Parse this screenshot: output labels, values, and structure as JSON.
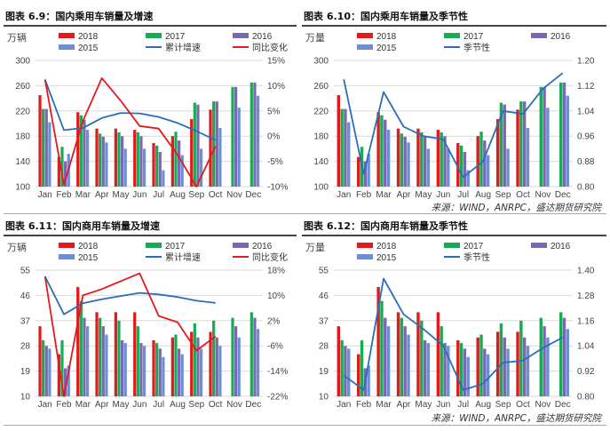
{
  "source_top": "来源：WIND，ANRPC，盛达期货研究院",
  "source_bottom": "来源：WIND，ANRPC，盛达期货研究院",
  "colors": {
    "y2018": "#e31a1c",
    "y2017": "#1aaa55",
    "y2016": "#7b68b0",
    "y2015": "#6b8fd6",
    "line_blue": "#2a6ebb",
    "line_red": "#e31a1c",
    "grid": "#d9d9d9"
  },
  "charts": [
    {
      "title": "图表 6.9：国内乘用车销量及增速",
      "unit": "万辆",
      "type": "bar",
      "categories": [
        "Jan",
        "Feb",
        "Mar",
        "Apr",
        "May",
        "Jun",
        "Jul",
        "Aug",
        "Sep",
        "Oct",
        "Nov",
        "Dec"
      ],
      "series": [
        {
          "name": "2018",
          "values": [
            245,
            147,
            218,
            192,
            192,
            190,
            169,
            180,
            207,
            222,
            null,
            null
          ]
        },
        {
          "name": "2017",
          "values": [
            223,
            163,
            213,
            184,
            186,
            186,
            165,
            187,
            233,
            235,
            258,
            265
          ]
        },
        {
          "name": "2016",
          "values": [
            223,
            140,
            206,
            179,
            180,
            180,
            155,
            173,
            230,
            235,
            258,
            265
          ]
        },
        {
          "name": "2015",
          "values": [
            202,
            152,
            190,
            170,
            160,
            160,
            126,
            150,
            160,
            193,
            225,
            244
          ]
        }
      ],
      "lines": [
        {
          "name": "累计增速",
          "axis": "right",
          "values": [
            11.2,
            1.2,
            1.6,
            3.6,
            4.6,
            4.5,
            3.8,
            2.6,
            1.0,
            -0.8,
            null,
            null
          ]
        },
        {
          "name": "同比变化",
          "axis": "right",
          "values": [
            11.2,
            -9.6,
            3.0,
            11.5,
            7.0,
            2.0,
            1.5,
            -3.7,
            -10.0,
            -2.0,
            null,
            null
          ]
        }
      ],
      "ylim": [
        100,
        300
      ],
      "yticks": [
        100,
        140,
        180,
        220,
        260,
        300
      ],
      "y2lim": [
        -10,
        15
      ],
      "y2ticks": [
        -10,
        -5,
        0,
        5,
        10,
        15
      ],
      "y2suffix": "%",
      "legend": [
        [
          "2018",
          "bar",
          "y2018"
        ],
        [
          "2017",
          "bar",
          "y2017"
        ],
        [
          "2016",
          "bar",
          "y2016"
        ],
        [
          "2015",
          "bar",
          "y2015"
        ],
        [
          "累计增速",
          "line",
          "line_blue"
        ],
        [
          "同比变化",
          "line",
          "line_red"
        ]
      ]
    },
    {
      "title": "图表 6.10：国内乘用车销量及季节性",
      "unit": "万量",
      "type": "bar",
      "categories": [
        "Jan",
        "Feb",
        "Mar",
        "Apr",
        "May",
        "Jun",
        "Jul",
        "Aug",
        "Sep",
        "Oct",
        "Nov",
        "Dec"
      ],
      "series": [
        {
          "name": "2018",
          "values": [
            245,
            147,
            218,
            192,
            192,
            190,
            169,
            180,
            207,
            222,
            null,
            null
          ]
        },
        {
          "name": "2017",
          "values": [
            223,
            163,
            213,
            184,
            186,
            186,
            165,
            187,
            233,
            235,
            258,
            265
          ]
        },
        {
          "name": "2016",
          "values": [
            223,
            140,
            206,
            179,
            180,
            180,
            155,
            173,
            230,
            235,
            258,
            265
          ]
        },
        {
          "name": "2015",
          "values": [
            202,
            152,
            190,
            170,
            160,
            160,
            126,
            150,
            160,
            193,
            225,
            244
          ]
        }
      ],
      "lines": [
        {
          "name": "季节性",
          "axis": "right",
          "values": [
            1.14,
            0.84,
            1.1,
            0.99,
            0.96,
            0.95,
            0.83,
            0.88,
            1.04,
            1.03,
            1.11,
            1.16
          ]
        }
      ],
      "ylim": [
        100,
        300
      ],
      "yticks": [
        100,
        140,
        180,
        220,
        260,
        300
      ],
      "y2lim": [
        0.8,
        1.2
      ],
      "y2ticks": [
        0.8,
        0.88,
        0.96,
        1.04,
        1.12,
        1.2
      ],
      "y2suffix": "",
      "legend": [
        [
          "2018",
          "bar",
          "y2018"
        ],
        [
          "2017",
          "bar",
          "y2017"
        ],
        [
          "2016",
          "bar",
          "y2016"
        ],
        [
          "2015",
          "bar",
          "y2015"
        ],
        [
          "季节性",
          "line",
          "line_blue"
        ]
      ]
    },
    {
      "title": "图表 6.11：国内商用车销量及增速",
      "unit": "万辆",
      "type": "bar",
      "categories": [
        "Jan",
        "Feb",
        "Mar",
        "Apr",
        "May",
        "Jun",
        "Jul",
        "Aug",
        "Sep",
        "Oct",
        "Nov",
        "Dec"
      ],
      "series": [
        {
          "name": "2018",
          "values": [
            35,
            25,
            49,
            40,
            40,
            40,
            30,
            31,
            33,
            33,
            null,
            null
          ]
        },
        {
          "name": "2017",
          "values": [
            30,
            30,
            44,
            38,
            37,
            35,
            29,
            32,
            36,
            37,
            38,
            40
          ]
        },
        {
          "name": "2016",
          "values": [
            28,
            20,
            38,
            35,
            30,
            29,
            27,
            27,
            31,
            31,
            35,
            38
          ]
        },
        {
          "name": "2015",
          "values": [
            27,
            21,
            35,
            32,
            29,
            28,
            24,
            25,
            27,
            28,
            31,
            34
          ]
        }
      ],
      "lines": [
        {
          "name": "累计增速",
          "axis": "right",
          "values": [
            16.0,
            4.0,
            7.5,
            8.8,
            9.8,
            10.8,
            10.3,
            9.5,
            8.3,
            7.6,
            null,
            null
          ]
        },
        {
          "name": "同比变化",
          "axis": "right",
          "values": [
            16.0,
            -22.0,
            10.0,
            12.0,
            14.5,
            17.0,
            3.5,
            1.5,
            -7.5,
            -3.0,
            null,
            null
          ]
        }
      ],
      "ylim": [
        10,
        55
      ],
      "yticks": [
        10,
        19,
        28,
        37,
        46,
        55
      ],
      "y2lim": [
        -22,
        18
      ],
      "y2ticks": [
        -22,
        -14,
        -6,
        2,
        10,
        18
      ],
      "y2suffix": "%",
      "legend": [
        [
          "2018",
          "bar",
          "y2018"
        ],
        [
          "2017",
          "bar",
          "y2017"
        ],
        [
          "2016",
          "bar",
          "y2016"
        ],
        [
          "2015",
          "bar",
          "y2015"
        ],
        [
          "累计增速",
          "line",
          "line_blue"
        ],
        [
          "同比变化",
          "line",
          "line_red"
        ]
      ]
    },
    {
      "title": "图表 6.12：国内商用车销量及季节性",
      "unit": "万量",
      "type": "bar",
      "categories": [
        "Jan",
        "Feb",
        "Mar",
        "Apr",
        "May",
        "Jun",
        "Jul",
        "Aug",
        "Sep",
        "Oct",
        "Nov",
        "Dec"
      ],
      "series": [
        {
          "name": "2018",
          "values": [
            35,
            25,
            49,
            40,
            40,
            40,
            30,
            31,
            33,
            33,
            null,
            null
          ]
        },
        {
          "name": "2017",
          "values": [
            30,
            30,
            44,
            38,
            37,
            35,
            29,
            32,
            36,
            37,
            38,
            40
          ]
        },
        {
          "name": "2016",
          "values": [
            28,
            20,
            38,
            35,
            30,
            29,
            27,
            27,
            31,
            31,
            35,
            38
          ]
        },
        {
          "name": "2015",
          "values": [
            27,
            21,
            35,
            32,
            29,
            28,
            24,
            25,
            27,
            28,
            31,
            34
          ]
        }
      ],
      "lines": [
        {
          "name": "季节性",
          "axis": "right",
          "values": [
            0.9,
            0.83,
            1.36,
            1.19,
            1.12,
            1.04,
            0.83,
            0.86,
            0.96,
            0.97,
            1.03,
            1.08
          ]
        }
      ],
      "ylim": [
        10,
        55
      ],
      "yticks": [
        10,
        19,
        28,
        37,
        46,
        55
      ],
      "y2lim": [
        0.8,
        1.4
      ],
      "y2ticks": [
        0.8,
        0.92,
        1.04,
        1.16,
        1.28,
        1.4
      ],
      "y2suffix": "",
      "legend": [
        [
          "2018",
          "bar",
          "y2018"
        ],
        [
          "2017",
          "bar",
          "y2017"
        ],
        [
          "2016",
          "bar",
          "y2016"
        ],
        [
          "2015",
          "bar",
          "y2015"
        ],
        [
          "季节性",
          "line",
          "line_blue"
        ]
      ]
    }
  ]
}
